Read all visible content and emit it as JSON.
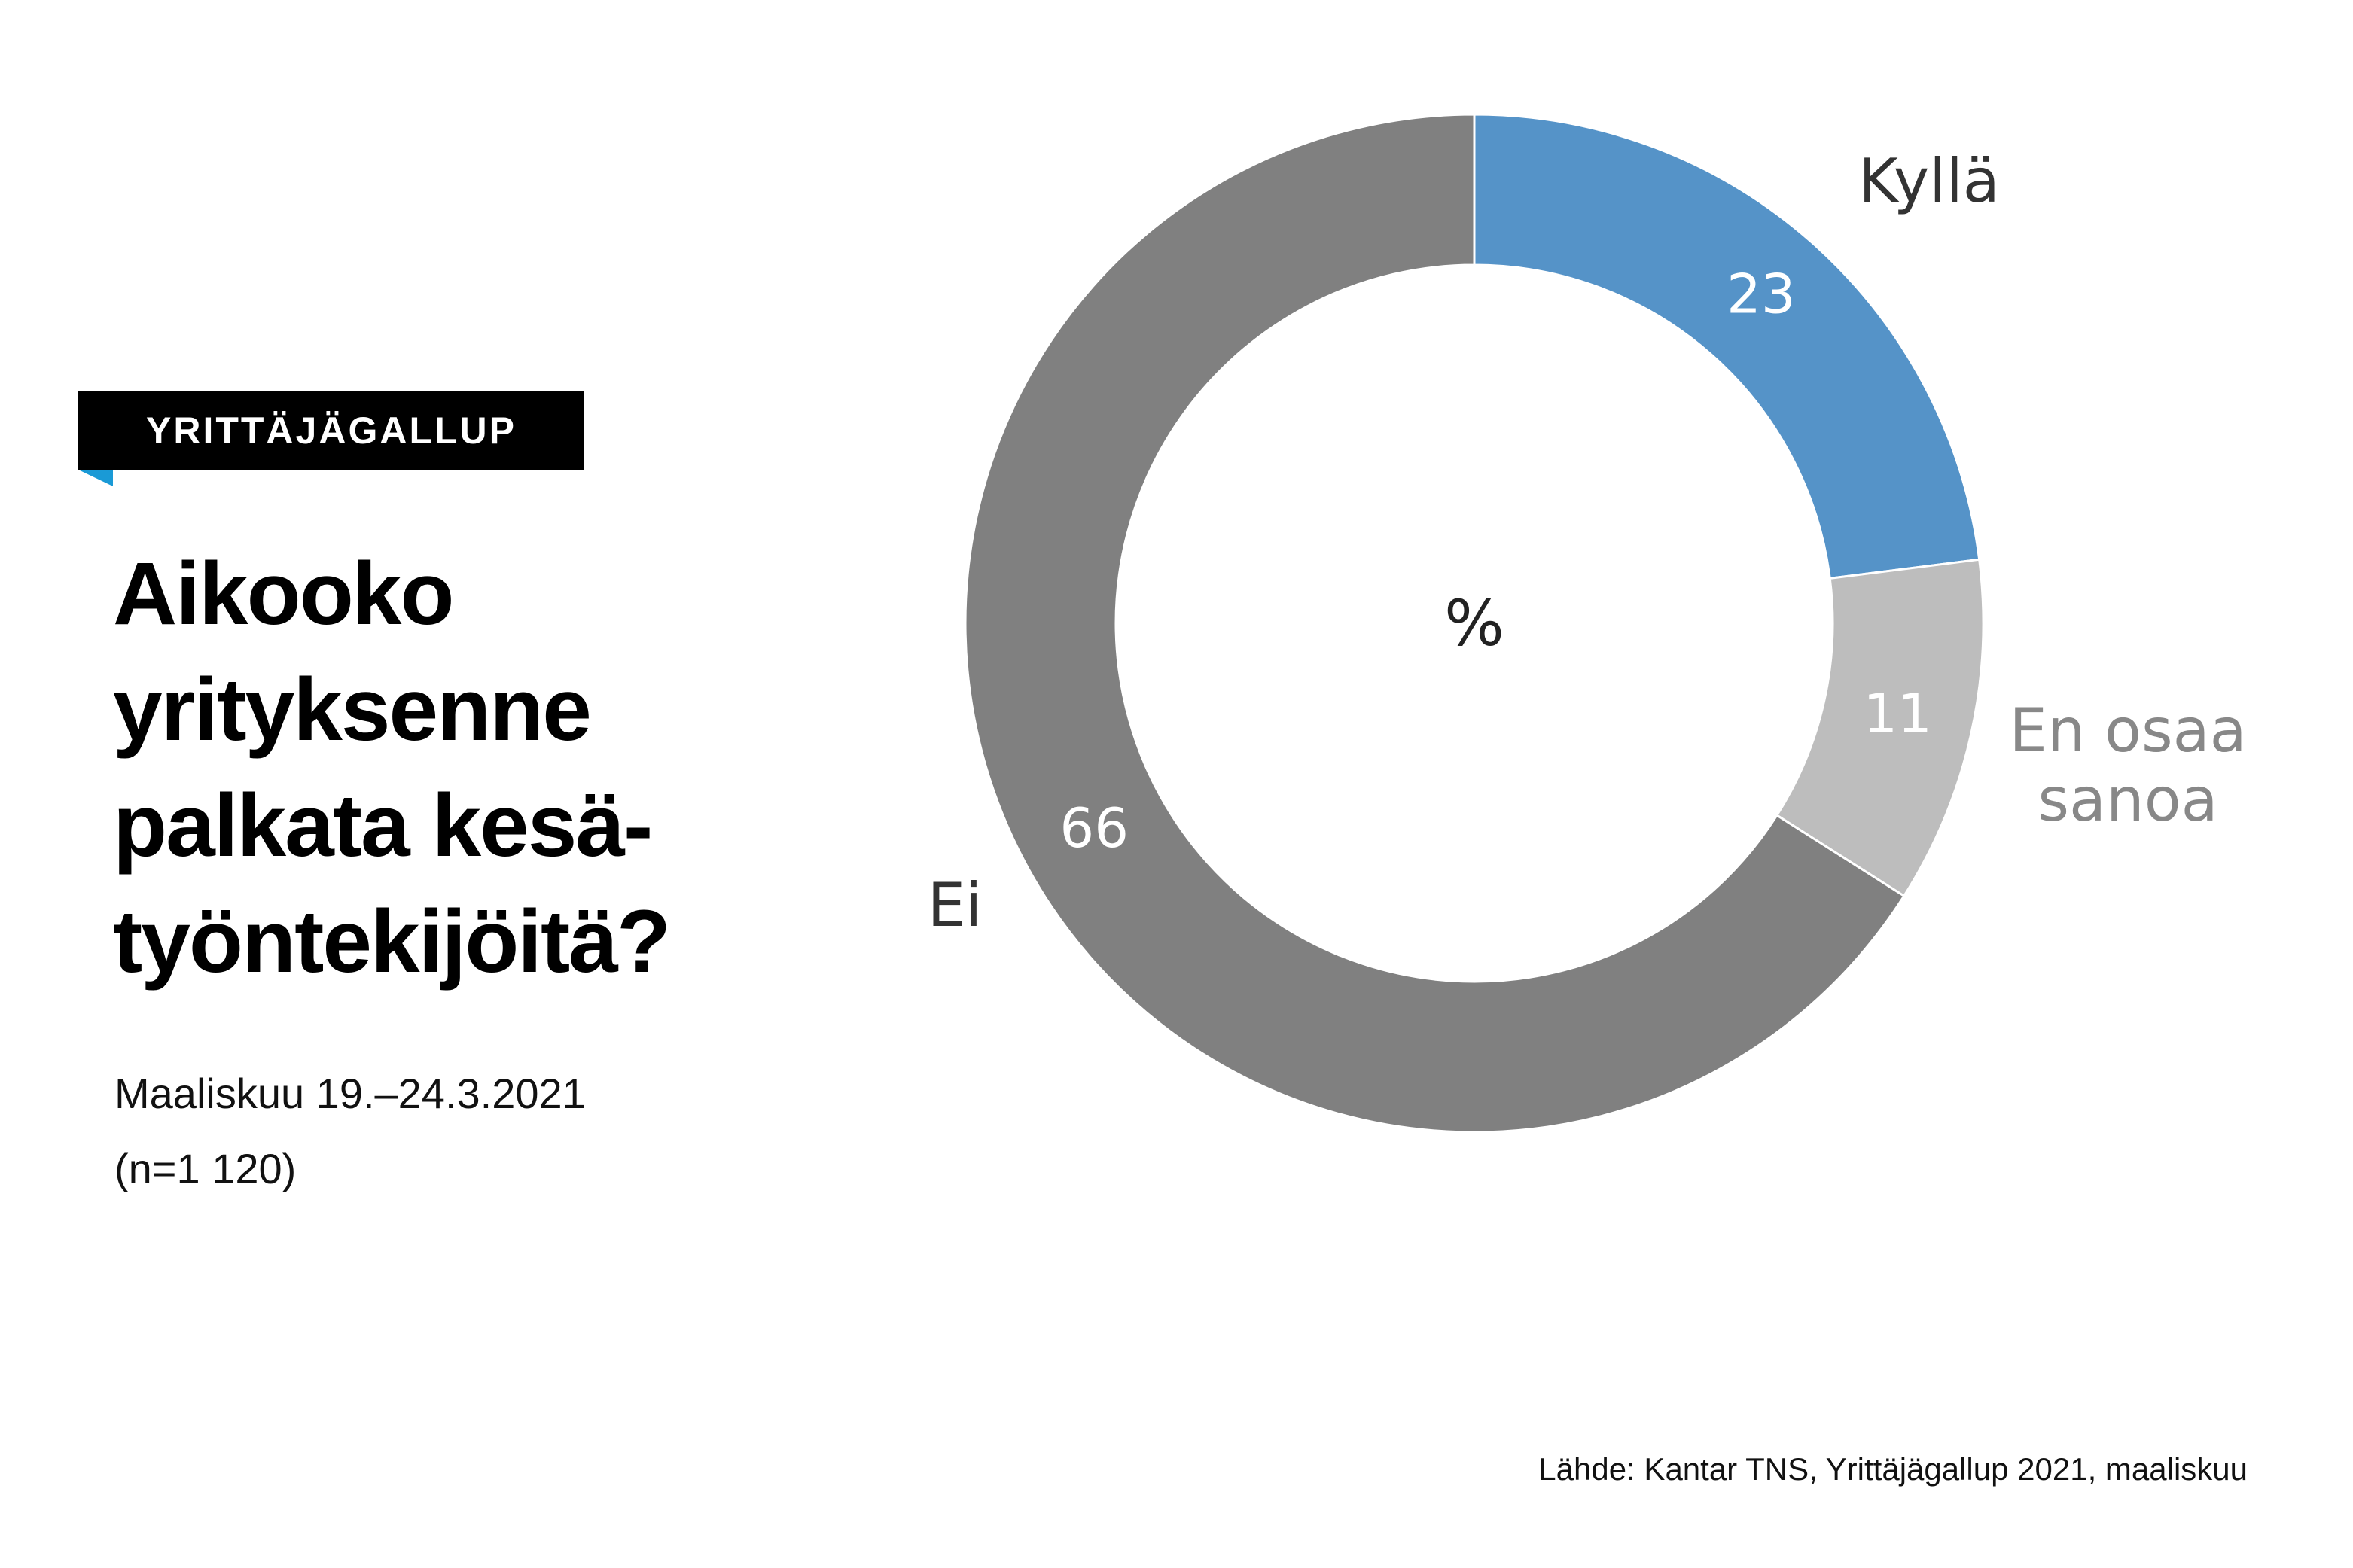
{
  "badge": "YRITTÄJÄGALLUP",
  "title": "Aikooko yrityksenne palkata kesä-työntekijöitä?",
  "subtitle": "Maaliskuu 19.–24.3.2021",
  "sample": "(n=1 120)",
  "source": "Lähde: Kantar TNS, Yrittäjägallup 2021, maaliskuu",
  "chart_data": {
    "type": "pie",
    "donut": true,
    "center_label": "%",
    "categories": [
      "Kyllä",
      "En osaa sanoa",
      "Ei"
    ],
    "values": [
      23,
      11,
      66
    ],
    "colors": [
      "#5593c8",
      "#bdbdbd",
      "#808080"
    ]
  }
}
